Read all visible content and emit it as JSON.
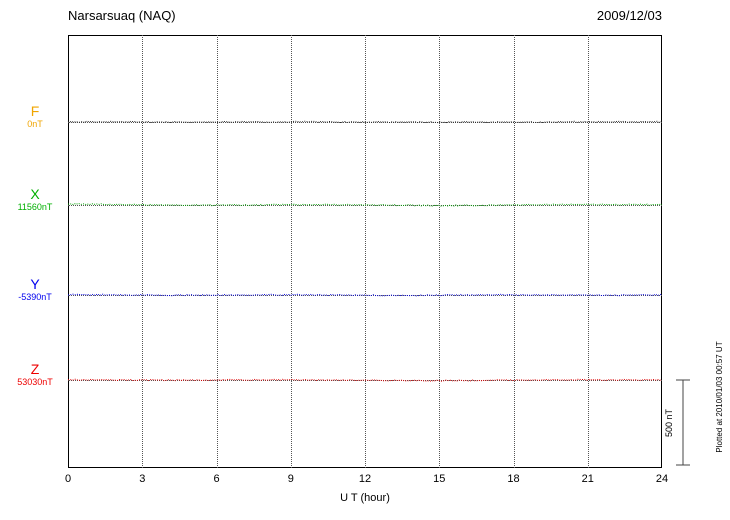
{
  "header": {
    "title": "Narsarsuaq (NAQ)",
    "date": "2009/12/03"
  },
  "chart_data": {
    "type": "line",
    "title": "Narsarsuaq (NAQ)",
    "date": "2009/12/03",
    "xlabel": "U T (hour)",
    "ylabel": "",
    "xlim": [
      0,
      24
    ],
    "x_ticks": [
      "0",
      "3",
      "6",
      "9",
      "12",
      "15",
      "18",
      "21",
      "24"
    ],
    "grid": "dotted, vertical every 3 hours, horizontal at each component baseline",
    "scale_bar": {
      "label": "500 nT",
      "nT": 500
    },
    "footer_note": "Plotted at 2010/01/03 00:57 UT",
    "series": [
      {
        "name": "F",
        "baseline_label": "0nT",
        "label_color": "#f0a500",
        "trace_color": "#222222",
        "values_nT": [
          1,
          1,
          1,
          0,
          0,
          0,
          0,
          1,
          1,
          1,
          1,
          0,
          0,
          0,
          -1,
          -1,
          -1,
          0,
          0,
          0,
          1,
          1,
          1,
          1,
          1
        ]
      },
      {
        "name": "X",
        "baseline_label": "11560nT",
        "label_color": "#00b000",
        "trace_color": "#00a000",
        "values_nT": [
          6,
          5,
          3,
          1,
          0,
          -1,
          -1,
          0,
          1,
          2,
          3,
          2,
          1,
          0,
          -2,
          -3,
          -3,
          -2,
          0,
          2,
          3,
          4,
          3,
          2,
          2
        ]
      },
      {
        "name": "Y",
        "baseline_label": "-5390nT",
        "label_color": "#0000ee",
        "trace_color": "#0000dd",
        "values_nT": [
          2,
          2,
          1,
          0,
          -1,
          -1,
          0,
          0,
          1,
          1,
          1,
          0,
          -1,
          -2,
          -2,
          -1,
          0,
          1,
          1,
          1,
          0,
          0,
          -1,
          0,
          1
        ]
      },
      {
        "name": "Z",
        "baseline_label": "53030nT",
        "label_color": "#ee0000",
        "trace_color": "#dd0000",
        "values_nT": [
          1,
          1,
          0,
          0,
          -1,
          -1,
          0,
          1,
          1,
          1,
          0,
          -1,
          -2,
          -3,
          -4,
          -4,
          -3,
          -2,
          -1,
          0,
          1,
          1,
          1,
          0,
          0
        ]
      }
    ]
  }
}
